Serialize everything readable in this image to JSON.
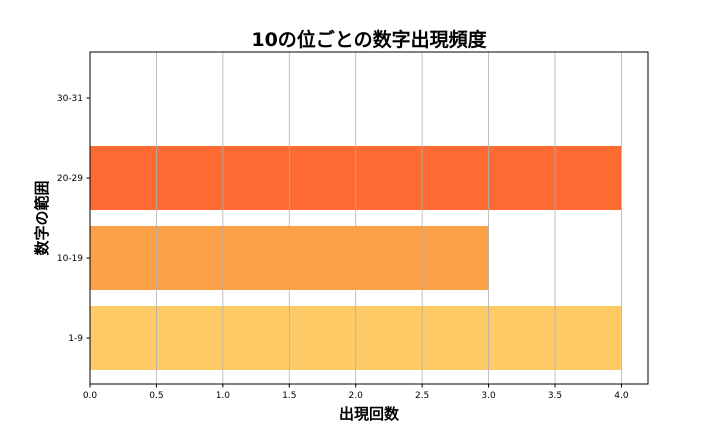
{
  "chart_data": {
    "type": "bar",
    "orientation": "horizontal",
    "title": "10の位ごとの数字出現頻度",
    "xlabel": "出現回数",
    "ylabel": "数字の範囲",
    "categories": [
      "1-9",
      "10-19",
      "20-29",
      "30-31"
    ],
    "values": [
      4,
      3,
      4,
      0
    ],
    "colors": [
      "#fdca66",
      "#fca148",
      "#fd6b33",
      "#ffffff"
    ],
    "xlim": [
      0,
      4.2
    ],
    "xticks": [
      "0.0",
      "0.5",
      "1.0",
      "1.5",
      "2.0",
      "2.5",
      "3.0",
      "3.5",
      "4.0"
    ],
    "grid": "x-axis vertical lines",
    "legend": "none"
  }
}
